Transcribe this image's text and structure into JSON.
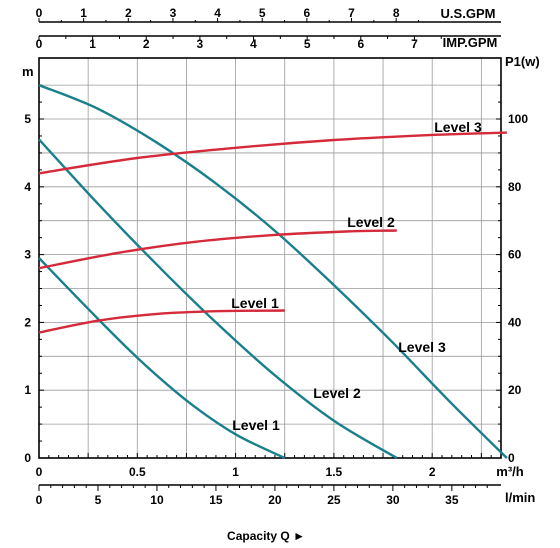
{
  "chart_data": {
    "type": "line",
    "top_axes": [
      {
        "unit_label": "U.S.GPM",
        "ticks": [
          "0",
          "1",
          "2",
          "3",
          "4",
          "5",
          "6",
          "7",
          "8"
        ],
        "values": [
          0,
          1,
          2,
          3,
          4,
          5,
          6,
          7,
          8
        ]
      },
      {
        "unit_label": "IMP.GPM",
        "ticks": [
          "0",
          "1",
          "2",
          "3",
          "4",
          "5",
          "6",
          "7"
        ],
        "values": [
          0,
          1,
          2,
          3,
          4,
          5,
          6,
          7
        ]
      }
    ],
    "left_axis": {
      "unit_label": "m",
      "range": [
        0,
        5.9
      ],
      "ticks": [
        "0",
        "1",
        "2",
        "3",
        "4",
        "5"
      ],
      "values": [
        0,
        1,
        2,
        3,
        4,
        5
      ]
    },
    "right_axis": {
      "unit_label": "P1(w)",
      "range": [
        0,
        118
      ],
      "ticks": [
        "0",
        "20",
        "40",
        "60",
        "80",
        "100"
      ],
      "values": [
        0,
        20,
        40,
        60,
        80,
        100
      ]
    },
    "bottom_axes": [
      {
        "unit_label": "m³/h",
        "range": [
          0,
          2.35
        ],
        "ticks": [
          "0",
          "0.5",
          "1",
          "1.5",
          "2"
        ],
        "values": [
          0,
          0.5,
          1,
          1.5,
          2
        ]
      },
      {
        "unit_label": "l/min",
        "ticks": [
          "0",
          "5",
          "10",
          "15",
          "20",
          "25",
          "30",
          "35"
        ],
        "values": [
          0,
          5,
          10,
          15,
          20,
          25,
          30,
          35
        ]
      }
    ],
    "xlabel": "Capacity Q ►",
    "grid": true,
    "head_curves": {
      "color": "#1a7f8c",
      "series": [
        {
          "name": "Level 1",
          "x": [
            0,
            0.25,
            0.5,
            0.75,
            1.0,
            1.25
          ],
          "y": [
            2.95,
            2.2,
            1.48,
            0.85,
            0.35,
            0.0
          ]
        },
        {
          "name": "Level 2",
          "x": [
            0,
            0.3,
            0.6,
            0.9,
            1.2,
            1.5,
            1.82
          ],
          "y": [
            4.7,
            3.75,
            2.85,
            2.0,
            1.22,
            0.55,
            0.0
          ]
        },
        {
          "name": "Level 3",
          "x": [
            0,
            0.3,
            0.6,
            0.9,
            1.2,
            1.5,
            1.8,
            2.1,
            2.38
          ],
          "y": [
            5.5,
            5.15,
            4.65,
            4.05,
            3.35,
            2.55,
            1.7,
            0.8,
            0.0
          ]
        }
      ]
    },
    "power_curves": {
      "color": "#d42a3a",
      "series": [
        {
          "name": "Level 1",
          "x": [
            0,
            0.3,
            0.6,
            0.9,
            1.25
          ],
          "y": [
            37,
            40.5,
            42.5,
            43.3,
            43.5
          ]
        },
        {
          "name": "Level 2",
          "x": [
            0,
            0.4,
            0.8,
            1.2,
            1.6,
            1.82
          ],
          "y": [
            56,
            60.5,
            63.8,
            65.8,
            66.9,
            67.1
          ]
        },
        {
          "name": "Level 3",
          "x": [
            0,
            0.5,
            1.0,
            1.5,
            2.0,
            2.38
          ],
          "y": [
            84,
            88.5,
            91.5,
            93.8,
            95.3,
            96
          ]
        }
      ]
    },
    "level_labels": {
      "power": [
        "Level 1",
        "Level 2",
        "Level 3"
      ],
      "head": [
        "Level 1",
        "Level 2",
        "Level 3"
      ]
    }
  }
}
